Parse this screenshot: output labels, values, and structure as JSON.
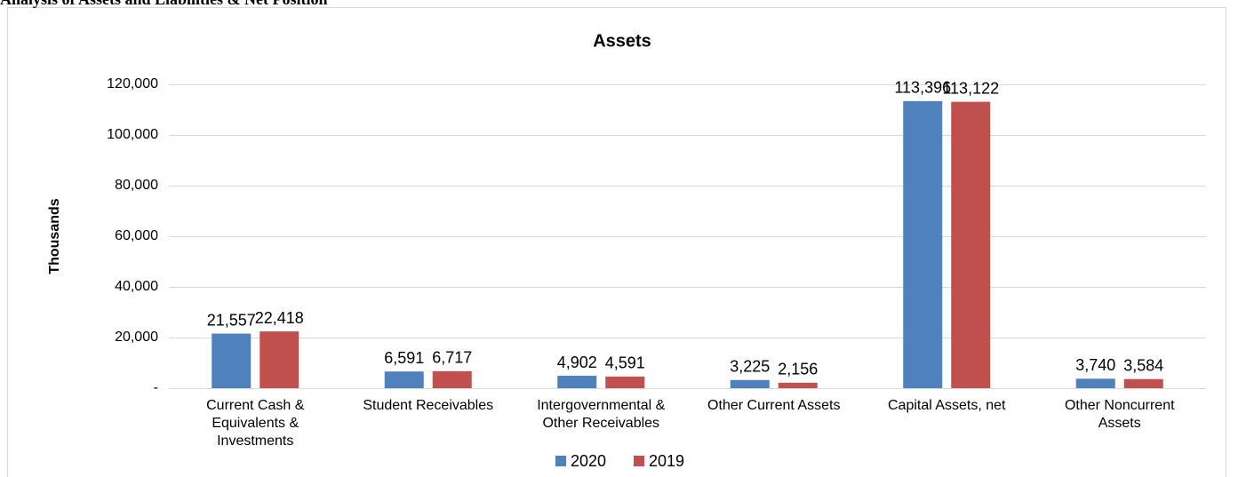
{
  "heading": "Analysis of Assets and Liabilities & Net Position",
  "chart_data": {
    "type": "bar",
    "title": "Assets",
    "y_label": "Thousands",
    "categories": [
      "Current Cash & Equivalents & Investments",
      "Student Receivables",
      "Intergovernmental & Other Receivables",
      "Other Current Assets",
      "Capital Assets, net",
      "Other Noncurrent Assets"
    ],
    "series": [
      {
        "name": "2020",
        "color": "#4f81bd",
        "values": [
          21557,
          6591,
          4902,
          3225,
          113396,
          3740
        ],
        "value_labels": [
          "21,557",
          "6,591",
          "4,902",
          "3,225",
          "113,396",
          "3,740"
        ]
      },
      {
        "name": "2019",
        "color": "#c0504d",
        "values": [
          22418,
          6717,
          4591,
          2156,
          113122,
          3584
        ],
        "value_labels": [
          "22,418",
          "6,717",
          "4,591",
          "2,156",
          "113,122",
          "3,584"
        ]
      }
    ],
    "ylim": [
      0,
      120000
    ],
    "yticks": [
      {
        "value": 0,
        "label": "-"
      },
      {
        "value": 20000,
        "label": "20,000"
      },
      {
        "value": 40000,
        "label": "40,000"
      },
      {
        "value": 60000,
        "label": "60,000"
      },
      {
        "value": 80000,
        "label": "80,000"
      },
      {
        "value": 100000,
        "label": "100,000"
      },
      {
        "value": 120000,
        "label": "120,000"
      }
    ],
    "grid": true,
    "legend": "bottom"
  }
}
